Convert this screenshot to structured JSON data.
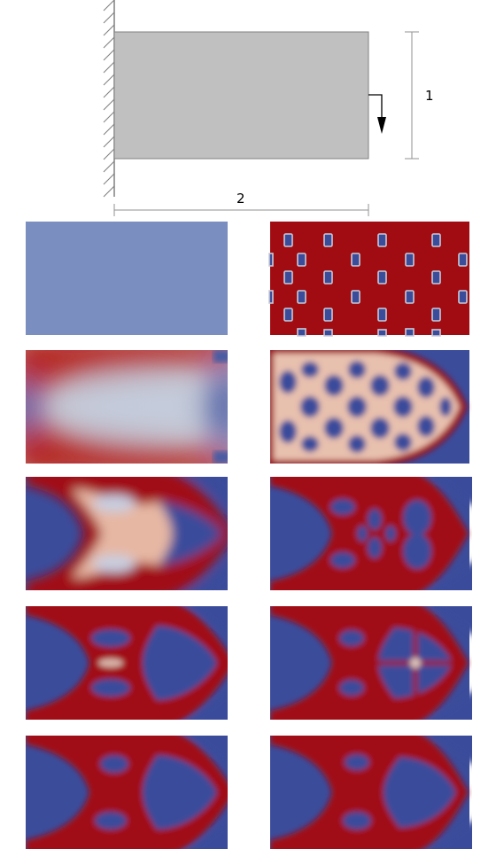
{
  "schematic": {
    "height_label": "1",
    "length_label": "2",
    "colors": {
      "domain_fill": "#c0c0c0",
      "domain_stroke": "#808080",
      "hatch": "#808080",
      "dim_line": "#909090",
      "load_arrow": "#000000"
    }
  },
  "colormap": {
    "void": "#3b4c9b",
    "mid": "#dcdcdc",
    "solid": "#a10b12"
  },
  "panels": [
    {
      "column": "left",
      "row": 1,
      "type": "uniform"
    },
    {
      "column": "right",
      "row": 1,
      "type": "periodic-holes"
    },
    {
      "column": "left",
      "row": 2,
      "type": "diffuse"
    },
    {
      "column": "right",
      "row": 2,
      "type": "lattice"
    },
    {
      "column": "left",
      "row": 3,
      "type": "intermediate"
    },
    {
      "column": "right",
      "row": 3,
      "type": "intermediate"
    },
    {
      "column": "left",
      "row": 4,
      "type": "converging"
    },
    {
      "column": "right",
      "row": 4,
      "type": "converging"
    },
    {
      "column": "left",
      "row": 5,
      "type": "final"
    },
    {
      "column": "right",
      "row": 5,
      "type": "final"
    }
  ]
}
